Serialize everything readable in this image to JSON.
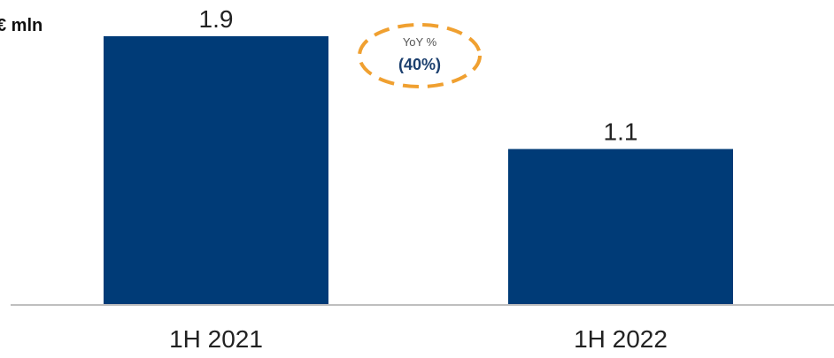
{
  "chart_data": {
    "type": "bar",
    "ylabel": "€ mln",
    "categories": [
      "1H 2021",
      "1H 2022"
    ],
    "values": [
      1.9,
      1.1
    ],
    "value_labels": [
      "1.9",
      "1.1"
    ],
    "ylim": [
      0,
      1.9
    ],
    "grid": false,
    "legend": "none",
    "colors": {
      "bar": "#003B77",
      "axis": "#BFBFBF",
      "text": "#222222",
      "callout_border": "#F0A030",
      "callout_title": "#555555",
      "callout_value": "#1B3F6E"
    },
    "annotation": {
      "title": "YoY %",
      "value": "(40%)"
    }
  }
}
